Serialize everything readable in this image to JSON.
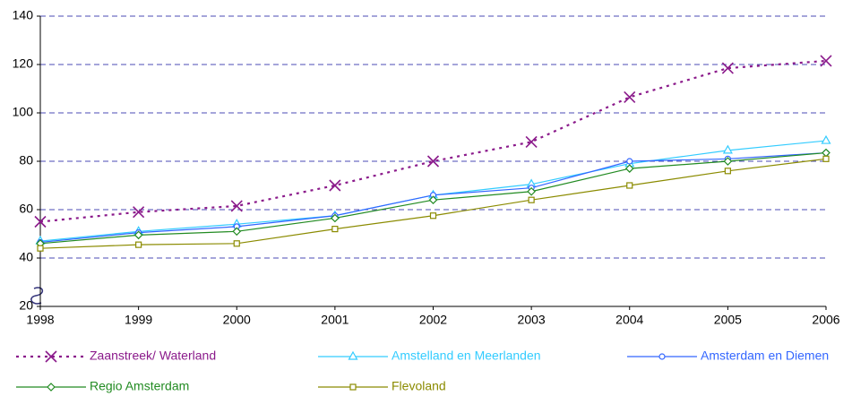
{
  "chart_data": {
    "type": "line",
    "categories": [
      "1998",
      "1999",
      "2000",
      "2001",
      "2002",
      "2003",
      "2004",
      "2005",
      "2006"
    ],
    "series": [
      {
        "name": "Zaanstreek/ Waterland",
        "color": "#8b1a8b",
        "dash": "dotted",
        "marker": "x",
        "values": [
          55,
          59,
          61.5,
          70,
          80,
          88,
          106.5,
          118.5,
          121.5
        ]
      },
      {
        "name": "Amstelland en Meerlanden",
        "color": "#33ccff",
        "marker": "triangle",
        "values": [
          47,
          51,
          54,
          57.5,
          66,
          70.5,
          79,
          84.5,
          88.5
        ]
      },
      {
        "name": "Amsterdam en Diemen",
        "color": "#3366ff",
        "marker": "circle",
        "values": [
          46.5,
          50.5,
          53,
          57.5,
          66,
          69,
          80,
          81,
          83.5
        ]
      },
      {
        "name": "Regio Amsterdam",
        "color": "#228b22",
        "marker": "diamond",
        "values": [
          46,
          49.5,
          51,
          56.5,
          64,
          67.5,
          77,
          80,
          83.5
        ]
      },
      {
        "name": "Flevoland",
        "color": "#8b8b00",
        "marker": "square",
        "values": [
          44,
          45.5,
          46,
          52,
          57.5,
          64,
          70,
          76,
          81
        ]
      }
    ],
    "ylim": [
      20,
      140
    ],
    "yticks": [
      20,
      40,
      60,
      80,
      100,
      120,
      140
    ],
    "grid": true,
    "legend": "bottom"
  }
}
